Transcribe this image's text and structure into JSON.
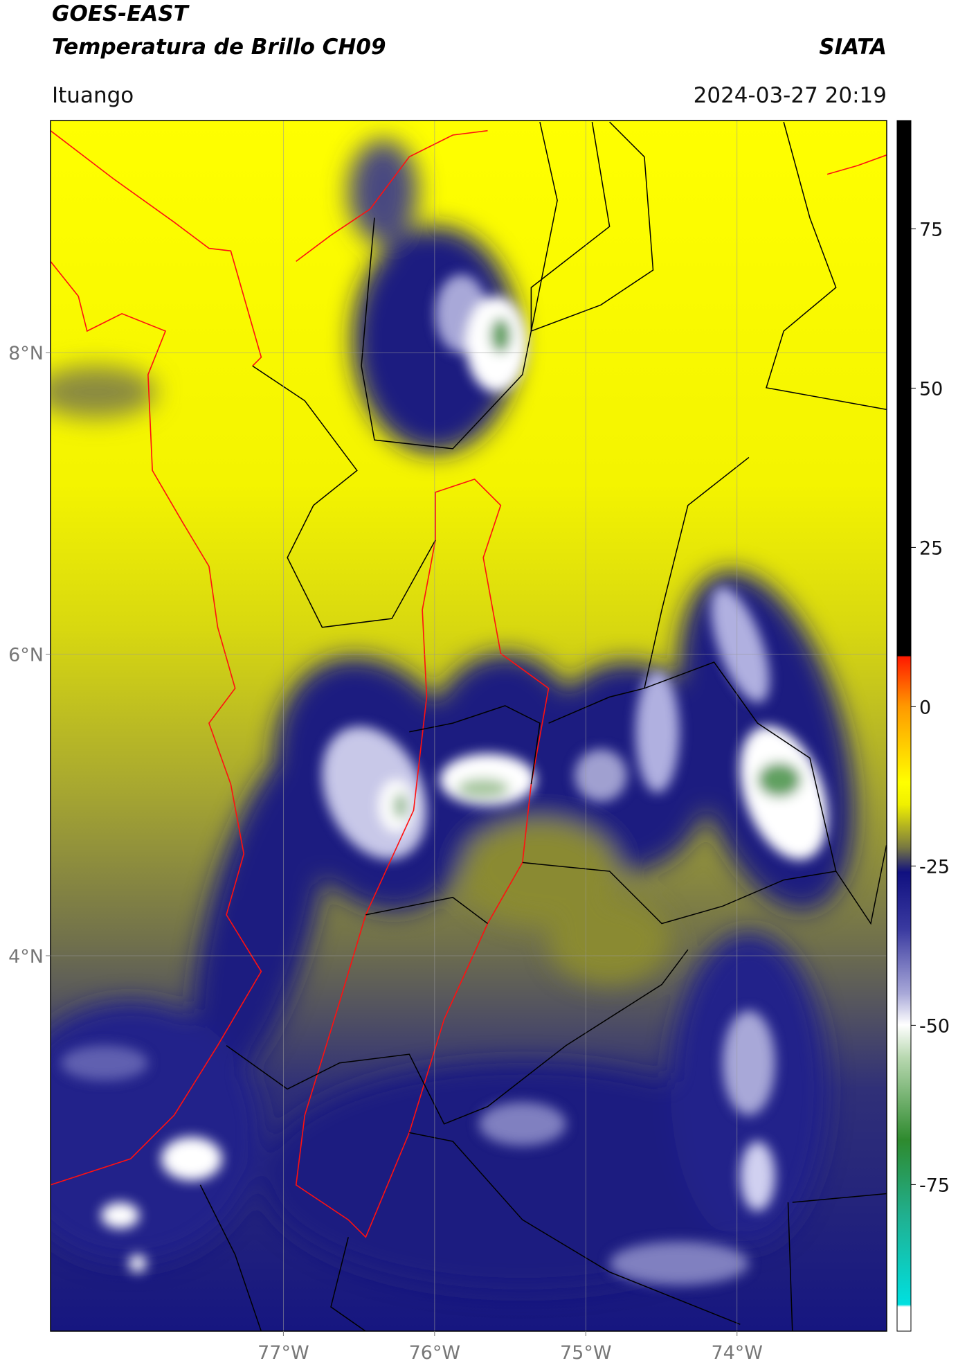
{
  "header": {
    "title": "GOES-EAST",
    "subtitle": "Temperatura de Brillo CH09",
    "source": "SIATA",
    "location": "Ituango",
    "timestamp": "2024-03-27 20:19"
  },
  "map": {
    "xlim": [
      -78.54,
      -73.01
    ],
    "ylim": [
      1.51,
      9.54
    ],
    "xticks": [
      {
        "value": -77,
        "label": "77°W"
      },
      {
        "value": -76,
        "label": "76°W"
      },
      {
        "value": -75,
        "label": "75°W"
      },
      {
        "value": -74,
        "label": "74°W"
      }
    ],
    "yticks": [
      {
        "value": 8,
        "label": "8°N"
      },
      {
        "value": 6,
        "label": "6°N"
      },
      {
        "value": 4,
        "label": "4°N"
      }
    ],
    "grid": true
  },
  "colorbar": {
    "lim": [
      -98,
      92
    ],
    "ticks": [
      75,
      50,
      25,
      0,
      -25,
      -50,
      -75
    ]
  }
}
